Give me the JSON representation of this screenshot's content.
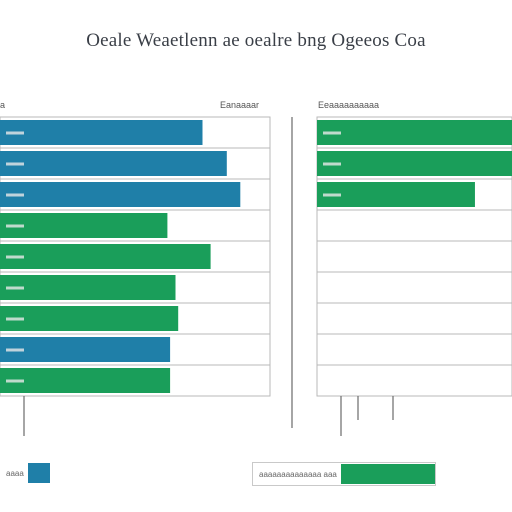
{
  "title": "Oeale Weaetlenn ae oealre bng Ogeeos Coa",
  "colors": {
    "blue": "#1f7fa8",
    "green": "#1a9e5a",
    "grid": "#b9b9b9",
    "axis": "#6a6a6a"
  },
  "chart_data": [
    {
      "type": "bar",
      "orientation": "horizontal",
      "panel": "left",
      "label_left": "a",
      "label_right": "Eanaaaar",
      "rows": 9,
      "bars": [
        {
          "value": 75,
          "color": "blue",
          "label": ""
        },
        {
          "value": 84,
          "color": "blue",
          "label": ""
        },
        {
          "value": 89,
          "color": "blue",
          "label": ""
        },
        {
          "value": 62,
          "color": "green",
          "label": ""
        },
        {
          "value": 78,
          "color": "green",
          "label": ""
        },
        {
          "value": 65,
          "color": "green",
          "label": ""
        },
        {
          "value": 66,
          "color": "green",
          "label": ""
        },
        {
          "value": 63,
          "color": "blue",
          "label": ""
        },
        {
          "value": 63,
          "color": "green",
          "label": ""
        }
      ],
      "xlim": [
        0,
        100
      ],
      "tick_label": "a",
      "grid": true
    },
    {
      "type": "bar",
      "orientation": "horizontal",
      "panel": "right",
      "label_left": "Eeaaaaaaaaaa",
      "rows": 9,
      "bars": [
        {
          "value": 100,
          "color": "green",
          "label": ""
        },
        {
          "value": 100,
          "color": "green",
          "label": ""
        },
        {
          "value": 81,
          "color": "green",
          "label": ""
        },
        {
          "value": 0,
          "color": "green",
          "label": ""
        },
        {
          "value": 0,
          "color": "green",
          "label": ""
        },
        {
          "value": 0,
          "color": "green",
          "label": ""
        },
        {
          "value": 0,
          "color": "green",
          "label": ""
        },
        {
          "value": 0,
          "color": "green",
          "label": ""
        },
        {
          "value": 0,
          "color": "green",
          "label": ""
        }
      ],
      "xlim": [
        0,
        100
      ],
      "grid": true
    }
  ],
  "legend": [
    {
      "color": "blue",
      "text": "aaaa"
    },
    {
      "color": "green",
      "text": "aaaaaaaaaaaaaa aaa"
    }
  ]
}
